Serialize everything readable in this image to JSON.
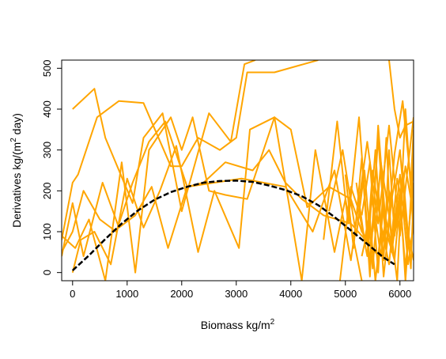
{
  "chart_data": {
    "type": "line",
    "xlabel": {
      "main": "Biomass kg/",
      "unit_base": "m",
      "unit_exp": "2"
    },
    "ylabel": {
      "main": "Derivatives kg/",
      "paren_open": "(",
      "unit_base": "m",
      "unit_exp": "2",
      "unit_rest": " day)"
    },
    "xlim": [
      -200,
      6250
    ],
    "ylim": [
      -20,
      520
    ],
    "x_ticks": [
      0,
      1000,
      2000,
      3000,
      4000,
      5000,
      6000
    ],
    "y_ticks": [
      0,
      100,
      200,
      300,
      400,
      500
    ],
    "grid": false,
    "legend": "none",
    "colors": {
      "series": "#FFA500",
      "fit": "#000000"
    },
    "series": [
      {
        "values": [
          [
            0,
            400
          ],
          [
            400,
            450
          ],
          [
            600,
            330
          ],
          [
            1100,
            170
          ],
          [
            1300,
            330
          ],
          [
            1650,
            390
          ],
          [
            2000,
            150
          ],
          [
            2500,
            390
          ],
          [
            2900,
            320
          ],
          [
            3150,
            510
          ],
          [
            3350,
            520
          ]
        ]
      },
      {
        "values": [
          [
            -200,
            80
          ],
          [
            0,
            220
          ],
          [
            100,
            240
          ],
          [
            450,
            380
          ],
          [
            850,
            420
          ],
          [
            1300,
            415
          ],
          [
            1800,
            260
          ],
          [
            2000,
            260
          ],
          [
            2300,
            330
          ],
          [
            2700,
            300
          ],
          [
            3000,
            330
          ],
          [
            3200,
            490
          ],
          [
            3700,
            490
          ],
          [
            4500,
            520
          ]
        ]
      },
      {
        "values": [
          [
            -200,
            50
          ],
          [
            0,
            100
          ],
          [
            200,
            200
          ],
          [
            500,
            130
          ],
          [
            800,
            100
          ],
          [
            1100,
            220
          ],
          [
            1400,
            320
          ],
          [
            1700,
            370
          ],
          [
            2100,
            210
          ],
          [
            2400,
            220
          ],
          [
            2800,
            270
          ],
          [
            3300,
            250
          ],
          [
            3600,
            300
          ],
          [
            3900,
            220
          ],
          [
            4200,
            180
          ],
          [
            4600,
            140
          ],
          [
            5100,
            120
          ],
          [
            5300,
            90
          ],
          [
            5500,
            60
          ]
        ]
      },
      {
        "values": [
          [
            -200,
            90
          ],
          [
            50,
            60
          ],
          [
            300,
            130
          ],
          [
            600,
            -20
          ],
          [
            900,
            270
          ],
          [
            1150,
            0
          ],
          [
            1400,
            300
          ],
          [
            1800,
            380
          ],
          [
            2000,
            300
          ],
          [
            2200,
            380
          ],
          [
            2500,
            200
          ],
          [
            2800,
            190
          ],
          [
            3200,
            180
          ],
          [
            3700,
            380
          ],
          [
            4000,
            350
          ],
          [
            4300,
            160
          ],
          [
            4700,
            210
          ],
          [
            5100,
            180
          ],
          [
            5300,
            100
          ],
          [
            5600,
            40
          ]
        ]
      },
      {
        "values": [
          [
            0,
            0
          ],
          [
            150,
            80
          ],
          [
            400,
            100
          ],
          [
            700,
            20
          ],
          [
            1000,
            230
          ],
          [
            1300,
            110
          ],
          [
            1600,
            200
          ],
          [
            1900,
            310
          ],
          [
            2300,
            50
          ],
          [
            2600,
            200
          ],
          [
            3050,
            60
          ],
          [
            3250,
            350
          ],
          [
            3700,
            380
          ],
          [
            4200,
            -20
          ],
          [
            4450,
            300
          ],
          [
            4800,
            50
          ],
          [
            5000,
            180
          ],
          [
            5300,
            -20
          ]
        ]
      },
      {
        "values": [
          [
            -200,
            40
          ],
          [
            0,
            170
          ],
          [
            200,
            40
          ],
          [
            550,
            220
          ],
          [
            850,
            110
          ],
          [
            1150,
            140
          ],
          [
            1450,
            210
          ],
          [
            1750,
            60
          ],
          [
            2100,
            210
          ],
          [
            2600,
            220
          ],
          [
            3100,
            230
          ],
          [
            3500,
            220
          ],
          [
            3900,
            210
          ],
          [
            4400,
            100
          ],
          [
            4800,
            250
          ],
          [
            5100,
            30
          ],
          [
            5400,
            320
          ],
          [
            5600,
            120
          ],
          [
            5800,
            360
          ],
          [
            6000,
            90
          ],
          [
            6250,
            380
          ]
        ]
      },
      {
        "values": [
          [
            4600,
            80
          ],
          [
            4850,
            370
          ],
          [
            5050,
            120
          ],
          [
            5250,
            380
          ],
          [
            5450,
            20
          ],
          [
            5600,
            330
          ],
          [
            5750,
            60
          ],
          [
            5900,
            290
          ],
          [
            6050,
            420
          ],
          [
            6200,
            220
          ],
          [
            6250,
            350
          ]
        ]
      },
      {
        "values": [
          [
            5000,
            240
          ],
          [
            5150,
            60
          ],
          [
            5300,
            280
          ],
          [
            5450,
            -10
          ],
          [
            5600,
            360
          ],
          [
            5750,
            100
          ],
          [
            5900,
            30
          ],
          [
            6050,
            250
          ],
          [
            6200,
            10
          ],
          [
            6250,
            200
          ]
        ]
      },
      {
        "values": [
          [
            4900,
            -20
          ],
          [
            5100,
            210
          ],
          [
            5250,
            150
          ],
          [
            5400,
            40
          ],
          [
            5550,
            300
          ],
          [
            5700,
            -10
          ],
          [
            5850,
            180
          ],
          [
            6000,
            300
          ],
          [
            6150,
            60
          ],
          [
            6250,
            310
          ]
        ]
      },
      {
        "values": [
          [
            4700,
            150
          ],
          [
            4950,
            300
          ],
          [
            5200,
            90
          ],
          [
            5350,
            250
          ],
          [
            5500,
            10
          ],
          [
            5650,
            270
          ],
          [
            5800,
            140
          ],
          [
            5950,
            -20
          ],
          [
            6100,
            400
          ],
          [
            6250,
            100
          ]
        ]
      },
      {
        "values": [
          [
            5300,
            140
          ],
          [
            5450,
            270
          ],
          [
            5600,
            0
          ],
          [
            5750,
            330
          ],
          [
            5850,
            50
          ],
          [
            6000,
            200
          ],
          [
            6100,
            -20
          ],
          [
            6250,
            270
          ]
        ]
      },
      {
        "values": [
          [
            5400,
            70
          ],
          [
            5500,
            250
          ],
          [
            5650,
            120
          ],
          [
            5800,
            20
          ],
          [
            5950,
            230
          ],
          [
            6100,
            130
          ],
          [
            6250,
            30
          ]
        ]
      },
      {
        "values": [
          [
            5500,
            100
          ],
          [
            5600,
            210
          ],
          [
            5700,
            30
          ],
          [
            5800,
            300
          ],
          [
            5900,
            90
          ],
          [
            6000,
            180
          ],
          [
            6100,
            10
          ],
          [
            6200,
            160
          ],
          [
            6250,
            220
          ]
        ]
      },
      {
        "values": [
          [
            5200,
            220
          ],
          [
            5350,
            80
          ],
          [
            5500,
            180
          ],
          [
            5650,
            40
          ],
          [
            5800,
            200
          ],
          [
            5950,
            110
          ],
          [
            6100,
            260
          ],
          [
            6250,
            140
          ]
        ]
      },
      {
        "values": [
          [
            5300,
            40
          ],
          [
            5450,
            130
          ],
          [
            5550,
            -20
          ],
          [
            5700,
            160
          ],
          [
            5850,
            60
          ],
          [
            6000,
            240
          ],
          [
            6150,
            20
          ],
          [
            6250,
            120
          ]
        ]
      },
      {
        "values": [
          [
            5800,
            520
          ],
          [
            5900,
            400
          ],
          [
            6000,
            330
          ],
          [
            6100,
            360
          ],
          [
            6250,
            370
          ]
        ]
      }
    ],
    "fit": {
      "x": [
        0,
        300,
        600,
        900,
        1200,
        1500,
        1800,
        2100,
        2400,
        2700,
        3000,
        3300,
        3600,
        3900,
        4200,
        4500,
        4800,
        5100,
        5400,
        5700,
        5900
      ],
      "y": [
        5,
        42,
        82,
        120,
        152,
        178,
        197,
        210,
        220,
        224,
        225,
        222,
        213,
        202,
        187,
        165,
        136,
        103,
        70,
        37,
        20
      ]
    }
  }
}
